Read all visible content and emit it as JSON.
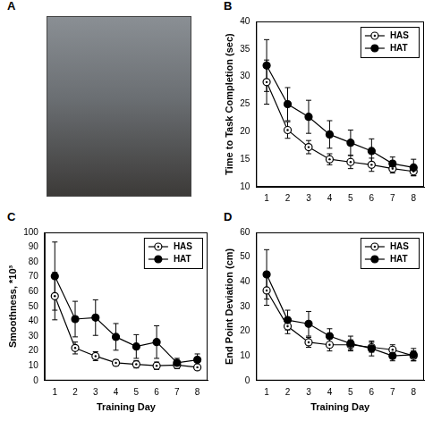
{
  "photo_panel": {
    "label": "A"
  },
  "chart_data": [
    {
      "type": "line",
      "panel_label": "B",
      "y_label": "Time to Task Completion (sec)",
      "x": [
        1,
        2,
        3,
        4,
        5,
        6,
        7,
        8
      ],
      "xlim": [
        0.5,
        8.5
      ],
      "xticks": [
        1,
        2,
        3,
        4,
        5,
        6,
        7,
        8
      ],
      "ylim": [
        10,
        40
      ],
      "yticks": [
        10,
        15,
        20,
        25,
        30,
        35,
        40
      ],
      "grid": false,
      "legend": "upper-right",
      "series": [
        {
          "name": "HAS",
          "color": "#000000",
          "marker": "circle-dot",
          "values": [
            29,
            20.3,
            17.2,
            15,
            14.5,
            14,
            13.3,
            12.8
          ],
          "errors": [
            4,
            1.5,
            1.2,
            1,
            1.2,
            1.2,
            0.8,
            0.8
          ]
        },
        {
          "name": "HAT",
          "color": "#000000",
          "marker": "circle",
          "values": [
            32,
            25,
            22.7,
            19.5,
            18,
            16.5,
            14.2,
            13.5
          ],
          "errors": [
            4.7,
            3,
            3,
            2.5,
            2.3,
            2.2,
            1.2,
            1.5
          ]
        }
      ]
    },
    {
      "type": "line",
      "panel_label": "C",
      "y_label": "Smoothness, *10³",
      "x_label": "Training Day",
      "x": [
        1,
        2,
        3,
        4,
        5,
        6,
        7,
        8
      ],
      "xlim": [
        0.5,
        8.5
      ],
      "xticks": [
        1,
        2,
        3,
        4,
        5,
        6,
        7,
        8
      ],
      "ylim": [
        0,
        100
      ],
      "yticks": [
        0,
        10,
        20,
        30,
        40,
        50,
        60,
        70,
        80,
        90,
        100
      ],
      "grid": false,
      "legend": "upper-right",
      "series": [
        {
          "name": "HAS",
          "color": "#000000",
          "marker": "circle-dot",
          "values": [
            57,
            22,
            16.5,
            12,
            11,
            10,
            10.5,
            9
          ],
          "errors": [
            16,
            4,
            3,
            2,
            2.5,
            2.5,
            2.5,
            1.5
          ]
        },
        {
          "name": "HAT",
          "color": "#000000",
          "marker": "circle",
          "values": [
            70.5,
            41.5,
            42.5,
            29.5,
            23,
            26,
            12,
            14
          ],
          "errors": [
            23,
            12,
            12,
            9,
            8,
            11,
            3,
            4
          ]
        }
      ]
    },
    {
      "type": "line",
      "panel_label": "D",
      "y_label": "End Point Deviation (cm)",
      "x_label": "Training Day",
      "x": [
        1,
        2,
        3,
        4,
        5,
        6,
        7,
        8
      ],
      "xlim": [
        0.5,
        8.5
      ],
      "xticks": [
        1,
        2,
        3,
        4,
        5,
        6,
        7,
        8
      ],
      "ylim": [
        0,
        60
      ],
      "yticks": [
        0,
        10,
        20,
        30,
        40,
        50,
        60
      ],
      "grid": false,
      "legend": "upper-right",
      "series": [
        {
          "name": "HAS",
          "color": "#000000",
          "marker": "circle-dot",
          "values": [
            36.5,
            22,
            15.5,
            14.5,
            14.5,
            13.5,
            12.5,
            10
          ],
          "errors": [
            6,
            3,
            2,
            2.5,
            2,
            2,
            2,
            2
          ]
        },
        {
          "name": "HAT",
          "color": "#000000",
          "marker": "circle",
          "values": [
            43,
            24.5,
            23,
            18,
            15,
            13,
            10,
            10.5
          ],
          "errors": [
            10,
            4,
            5,
            3,
            3,
            3,
            2,
            2.5
          ]
        }
      ]
    }
  ]
}
